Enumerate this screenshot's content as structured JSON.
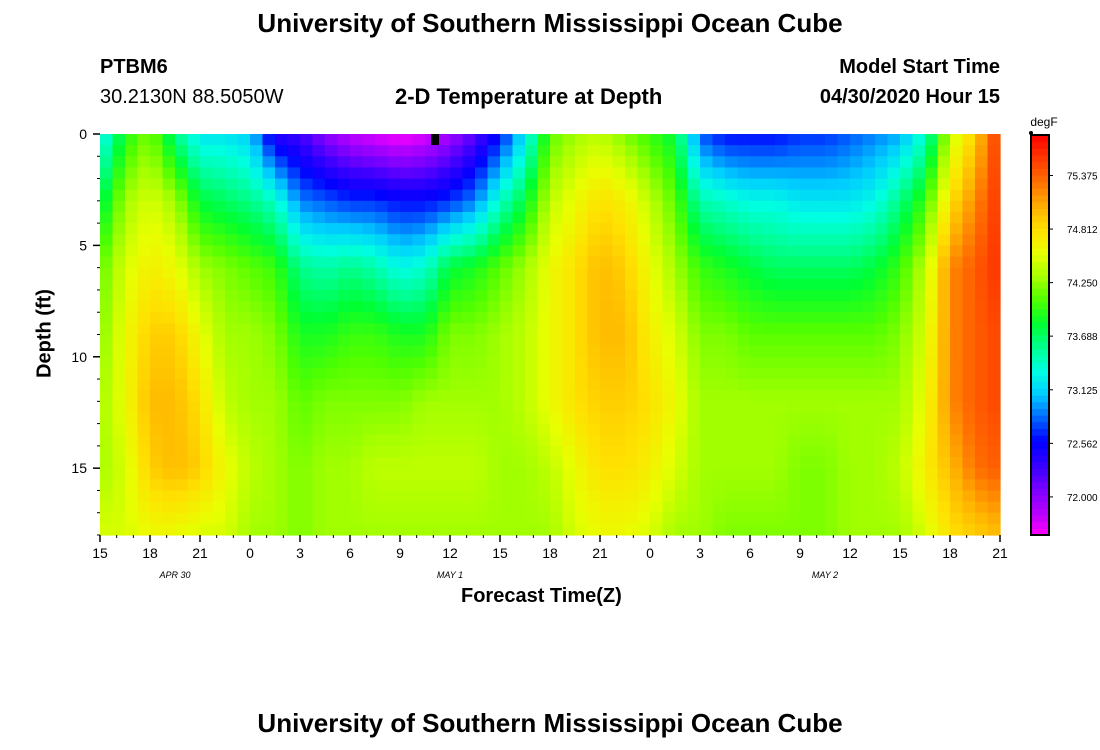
{
  "header": {
    "title_top": "University of Southern Mississippi Ocean Cube",
    "title_bottom": "University of Southern Mississippi Ocean Cube",
    "station_id": "PTBM6",
    "station_coords": "30.2130N 88.5050W",
    "model_label": "Model Start Time",
    "model_time": "04/30/2020 Hour 15"
  },
  "chart_data": {
    "type": "heatmap",
    "title": "2-D Temperature at Depth",
    "xlabel": "Forecast Time(Z)",
    "ylabel": "Depth (ft)",
    "x_ticks": [
      "15",
      "18",
      "21",
      "0",
      "3",
      "6",
      "9",
      "12",
      "15",
      "18",
      "21",
      "0",
      "3",
      "6",
      "9",
      "12",
      "15",
      "18",
      "21"
    ],
    "x_hours": [
      0,
      3,
      6,
      9,
      12,
      15,
      18,
      21,
      24,
      27,
      30,
      33,
      36,
      39,
      42,
      45,
      48,
      51,
      54
    ],
    "date_labels": [
      {
        "text": "APR  30",
        "hour": 4.5
      },
      {
        "text": "MAY  1",
        "hour": 21
      },
      {
        "text": "MAY  2",
        "hour": 43.5
      }
    ],
    "y_ticks": [
      "0",
      "5",
      "10",
      "15"
    ],
    "y_values": [
      0,
      5,
      10,
      15
    ],
    "ylim": [
      0,
      18
    ],
    "xlim": [
      0,
      54
    ],
    "colorbar": {
      "unit": "degF",
      "min": 71.6,
      "max": 75.8,
      "ticks": [
        "75.375",
        "74.812",
        "74.250",
        "73.688",
        "73.125",
        "72.562",
        "72.000"
      ],
      "tick_values": [
        75.375,
        74.812,
        74.25,
        73.688,
        73.125,
        72.562,
        72.0
      ],
      "colors": [
        "#ff00ff",
        "#b400ff",
        "#7700ff",
        "#3300ff",
        "#0000ff",
        "#0066ff",
        "#00ccff",
        "#00ffe0",
        "#00ff90",
        "#00ff30",
        "#50ff00",
        "#a8ff00",
        "#e8ff00",
        "#ffe000",
        "#ffb000",
        "#ff7000",
        "#ff3a00",
        "#ff0000"
      ]
    },
    "time_hours": [
      0,
      1.5,
      3,
      4.5,
      6,
      7.5,
      9,
      10.5,
      12,
      13.5,
      15,
      16.5,
      18,
      19.5,
      21,
      22.5,
      24,
      25.5,
      27,
      28.5,
      30,
      31.5,
      33,
      34.5,
      36,
      37.5,
      39,
      40.5,
      42,
      43.5,
      45,
      46.5,
      48,
      49.5,
      51,
      52.5,
      54
    ],
    "depth_ft": [
      0,
      3,
      6,
      9,
      12,
      15,
      18
    ],
    "temperature_degF": [
      [
        73.2,
        73.9,
        74.2,
        73.6,
        73.2,
        73.2,
        73.1,
        72.4,
        72.3,
        72.0,
        71.8,
        71.7,
        71.6,
        71.7,
        71.9,
        72.2,
        72.6,
        73.2,
        74.1,
        74.3,
        74.4,
        74.2,
        74.0,
        73.8,
        72.8,
        72.6,
        72.6,
        72.6,
        72.7,
        72.7,
        72.8,
        72.9,
        73.0,
        73.4,
        74.4,
        74.9,
        75.6
      ],
      [
        73.7,
        74.3,
        74.5,
        74.3,
        73.8,
        73.7,
        73.6,
        73.4,
        72.9,
        72.8,
        72.7,
        72.7,
        72.6,
        72.6,
        72.7,
        72.9,
        73.4,
        73.8,
        74.4,
        74.6,
        74.8,
        74.7,
        74.4,
        74.1,
        73.5,
        73.4,
        73.3,
        73.3,
        73.2,
        73.2,
        73.2,
        73.3,
        73.6,
        74.0,
        74.8,
        75.2,
        75.6
      ],
      [
        74.1,
        74.5,
        74.7,
        74.6,
        74.3,
        74.2,
        74.1,
        74.0,
        73.6,
        73.5,
        73.6,
        73.5,
        73.3,
        73.4,
        73.8,
        73.9,
        74.1,
        74.3,
        74.6,
        74.8,
        75.0,
        74.9,
        74.6,
        74.3,
        74.0,
        73.9,
        73.8,
        73.7,
        73.7,
        73.7,
        73.7,
        73.8,
        74.0,
        74.4,
        75.2,
        75.4,
        75.6
      ],
      [
        74.2,
        74.6,
        74.9,
        74.9,
        74.6,
        74.3,
        74.3,
        74.2,
        73.9,
        73.9,
        74.0,
        74.0,
        73.9,
        73.9,
        74.2,
        74.2,
        74.3,
        74.4,
        74.6,
        74.8,
        75.0,
        75.0,
        74.7,
        74.5,
        74.2,
        74.2,
        74.1,
        74.1,
        74.1,
        74.1,
        74.1,
        74.1,
        74.2,
        74.5,
        75.2,
        75.4,
        75.5
      ],
      [
        74.3,
        74.6,
        75.0,
        75.0,
        74.8,
        74.4,
        74.3,
        74.3,
        74.1,
        74.2,
        74.2,
        74.2,
        74.2,
        74.3,
        74.3,
        74.3,
        74.3,
        74.4,
        74.6,
        74.8,
        74.9,
        74.9,
        74.8,
        74.6,
        74.3,
        74.3,
        74.3,
        74.3,
        74.3,
        74.3,
        74.3,
        74.3,
        74.3,
        74.6,
        75.2,
        75.4,
        75.5
      ],
      [
        74.3,
        74.5,
        74.9,
        75.0,
        74.9,
        74.6,
        74.4,
        74.3,
        74.2,
        74.3,
        74.3,
        74.4,
        74.4,
        74.4,
        74.4,
        74.4,
        74.3,
        74.3,
        74.4,
        74.6,
        74.8,
        74.8,
        74.7,
        74.5,
        74.3,
        74.3,
        74.3,
        74.3,
        74.2,
        74.2,
        74.3,
        74.3,
        74.4,
        74.7,
        75.0,
        75.3,
        75.4
      ],
      [
        74.5,
        74.5,
        74.6,
        74.6,
        74.5,
        74.5,
        74.3,
        74.3,
        74.2,
        74.3,
        74.3,
        74.3,
        74.3,
        74.3,
        74.3,
        74.3,
        74.3,
        74.3,
        74.3,
        74.5,
        74.6,
        74.6,
        74.5,
        74.3,
        74.3,
        74.2,
        74.2,
        74.2,
        74.2,
        74.2,
        74.3,
        74.3,
        74.3,
        74.5,
        74.8,
        74.9,
        75.0
      ]
    ]
  }
}
